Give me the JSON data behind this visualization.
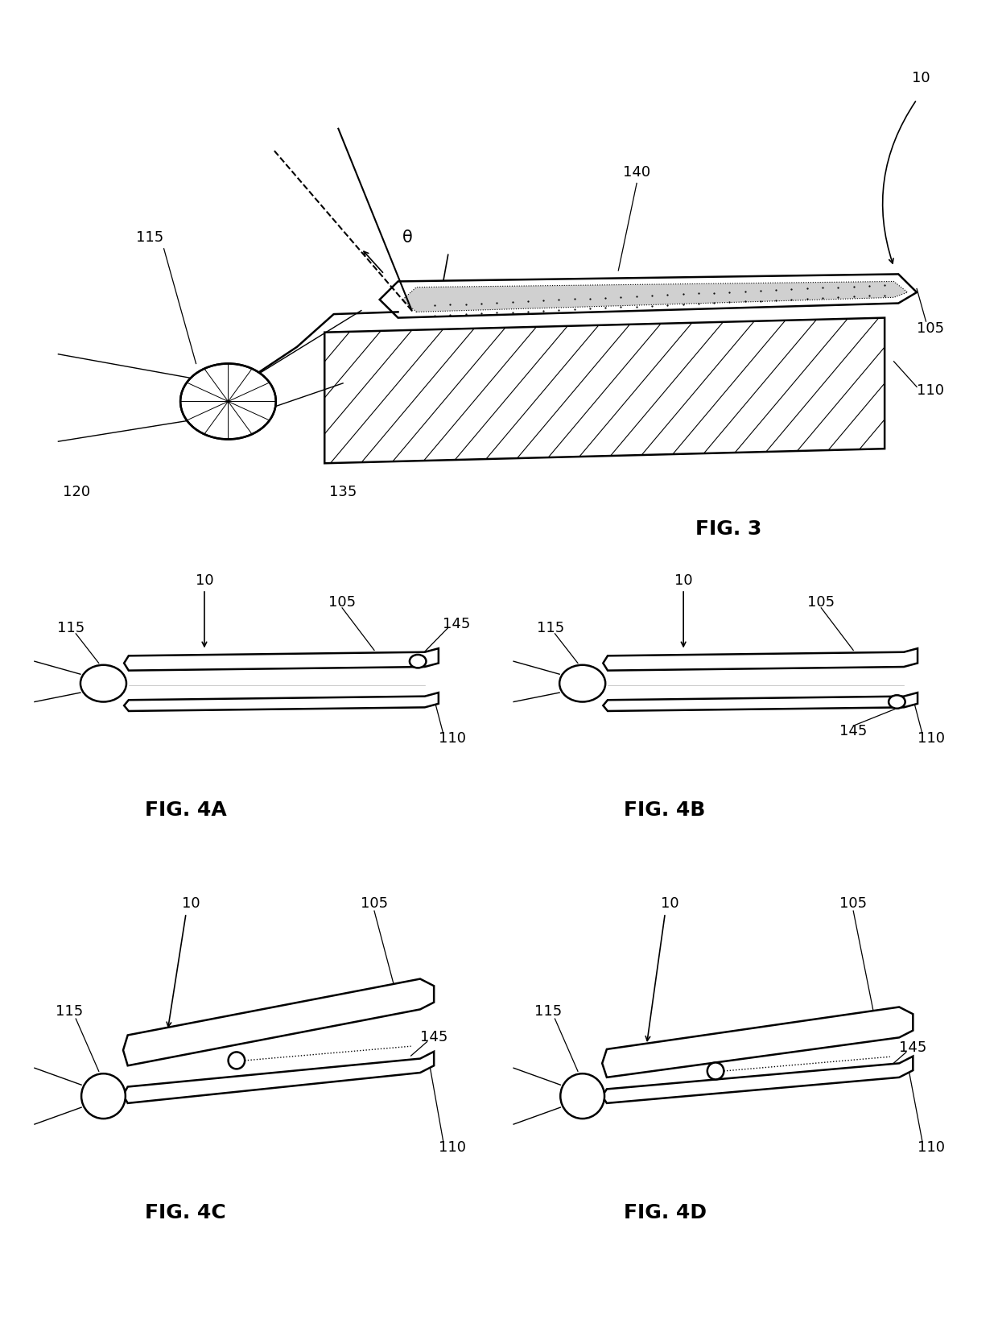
{
  "bg": "#ffffff",
  "lc": "#000000",
  "lw": 1.8,
  "lw_thin": 1.0,
  "fs_label": 13,
  "fs_fig": 18,
  "labels": {
    "10": "10",
    "105": "105",
    "110": "110",
    "115": "115",
    "120": "120",
    "135": "135",
    "140": "140",
    "145": "145",
    "theta": "θ"
  },
  "fig3": "FIG. 3",
  "fig4a": "FIG. 4A",
  "fig4b": "FIG. 4B",
  "fig4c": "FIG. 4C",
  "fig4d": "FIG. 4D"
}
